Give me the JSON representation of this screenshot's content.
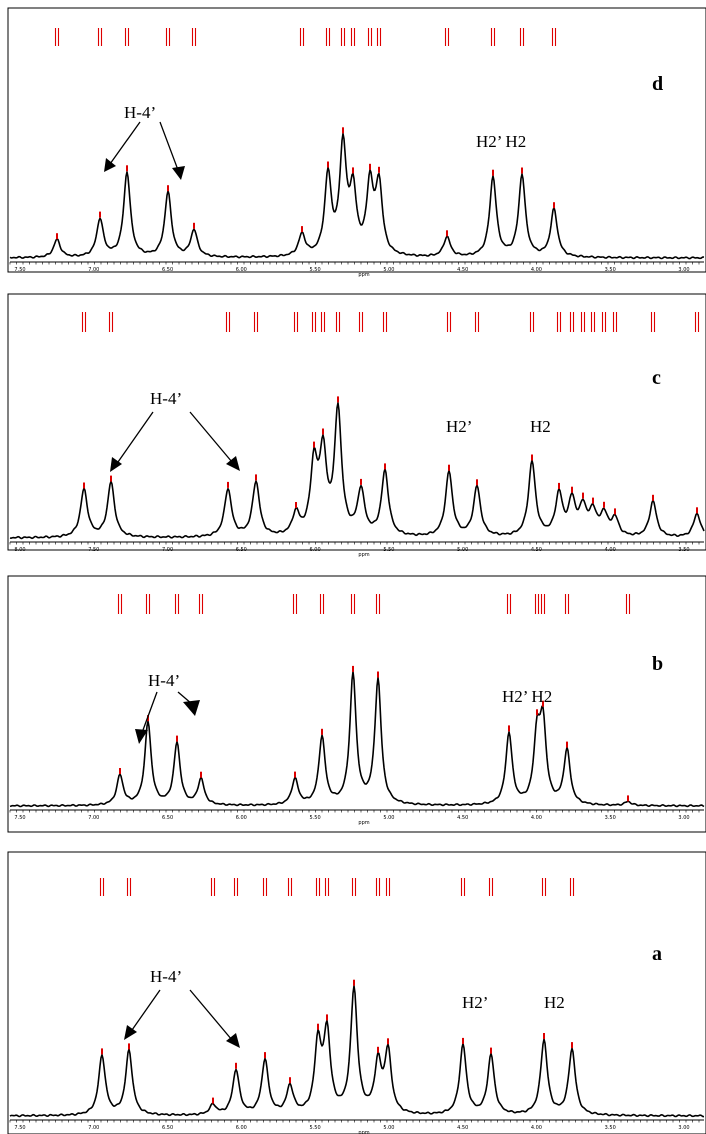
{
  "chart_data": [
    {
      "type": "line",
      "panel": "d",
      "annotation_left": "H-4’",
      "annotation_right": "H2’ H2",
      "peaks": [
        {
          "x": 57,
          "h": 18
        },
        {
          "x": 100,
          "h": 38
        },
        {
          "x": 127,
          "h": 85
        },
        {
          "x": 168,
          "h": 65
        },
        {
          "x": 194,
          "h": 27
        },
        {
          "x": 302,
          "h": 22
        },
        {
          "x": 328,
          "h": 80
        },
        {
          "x": 343,
          "h": 108
        },
        {
          "x": 353,
          "h": 62
        },
        {
          "x": 370,
          "h": 70
        },
        {
          "x": 379,
          "h": 70
        },
        {
          "x": 447,
          "h": 20
        },
        {
          "x": 493,
          "h": 80
        },
        {
          "x": 522,
          "h": 82
        },
        {
          "x": 554,
          "h": 48
        }
      ],
      "tick_labels": [
        "3.00",
        "3.50",
        "4.00",
        "4.50",
        "5.00",
        "5.50",
        "6.00",
        "6.50",
        "7.00",
        "7.50"
      ],
      "x_axis_label": "ppm"
    },
    {
      "type": "line",
      "panel": "c",
      "annotation_left": "H-4’",
      "annotation_right_1": "H2’",
      "annotation_right_2": "H2",
      "peaks": [
        {
          "x": 84,
          "h": 48
        },
        {
          "x": 111,
          "h": 55
        },
        {
          "x": 228,
          "h": 48
        },
        {
          "x": 256,
          "h": 55
        },
        {
          "x": 296,
          "h": 22
        },
        {
          "x": 314,
          "h": 70
        },
        {
          "x": 323,
          "h": 80
        },
        {
          "x": 338,
          "h": 125
        },
        {
          "x": 361,
          "h": 45
        },
        {
          "x": 385,
          "h": 65
        },
        {
          "x": 449,
          "h": 65
        },
        {
          "x": 477,
          "h": 50
        },
        {
          "x": 532,
          "h": 75
        },
        {
          "x": 559,
          "h": 42
        },
        {
          "x": 572,
          "h": 35
        },
        {
          "x": 583,
          "h": 28
        },
        {
          "x": 593,
          "h": 24
        },
        {
          "x": 604,
          "h": 22
        },
        {
          "x": 615,
          "h": 18
        },
        {
          "x": 653,
          "h": 36
        },
        {
          "x": 697,
          "h": 24
        }
      ],
      "tick_labels": [
        "3.50",
        "4.00",
        "4.50",
        "5.00",
        "5.50",
        "6.00",
        "6.50",
        "7.00",
        "7.50",
        "8.00"
      ],
      "x_axis_label": "ppm"
    },
    {
      "type": "line",
      "panel": "b",
      "annotation_left": "H-4’",
      "annotation_right": "H2’ H2",
      "peaks": [
        {
          "x": 120,
          "h": 30
        },
        {
          "x": 148,
          "h": 83
        },
        {
          "x": 177,
          "h": 62
        },
        {
          "x": 201,
          "h": 26
        },
        {
          "x": 295,
          "h": 26
        },
        {
          "x": 322,
          "h": 68
        },
        {
          "x": 353,
          "h": 130
        },
        {
          "x": 378,
          "h": 125
        },
        {
          "x": 509,
          "h": 72
        },
        {
          "x": 537,
          "h": 66
        },
        {
          "x": 543,
          "h": 78
        },
        {
          "x": 567,
          "h": 55
        },
        {
          "x": 628,
          "h": 4
        }
      ],
      "tick_labels": [
        "3.00",
        "3.50",
        "4.00",
        "4.50",
        "5.00",
        "5.50",
        "6.00",
        "6.50",
        "7.00",
        "7.50"
      ],
      "x_axis_label": "ppm"
    },
    {
      "type": "line",
      "panel": "a",
      "annotation_left": "H-4’",
      "annotation_right_1": "H2’",
      "annotation_right_2": "H2",
      "peaks": [
        {
          "x": 102,
          "h": 60
        },
        {
          "x": 129,
          "h": 65
        },
        {
          "x": 213,
          "h": 10
        },
        {
          "x": 236,
          "h": 45
        },
        {
          "x": 265,
          "h": 55
        },
        {
          "x": 290,
          "h": 28
        },
        {
          "x": 318,
          "h": 70
        },
        {
          "x": 327,
          "h": 80
        },
        {
          "x": 354,
          "h": 125
        },
        {
          "x": 378,
          "h": 50
        },
        {
          "x": 388,
          "h": 62
        },
        {
          "x": 463,
          "h": 70
        },
        {
          "x": 491,
          "h": 60
        },
        {
          "x": 544,
          "h": 75
        },
        {
          "x": 572,
          "h": 66
        }
      ],
      "tick_labels": [
        "3.00",
        "3.50",
        "4.00",
        "4.50",
        "5.00",
        "5.50",
        "6.00",
        "6.50",
        "7.00",
        "7.50"
      ],
      "x_axis_label": "ppm"
    }
  ],
  "colors": {
    "trace": "#000000",
    "peak_marker": "#dd0000",
    "background": "#ffffff"
  }
}
